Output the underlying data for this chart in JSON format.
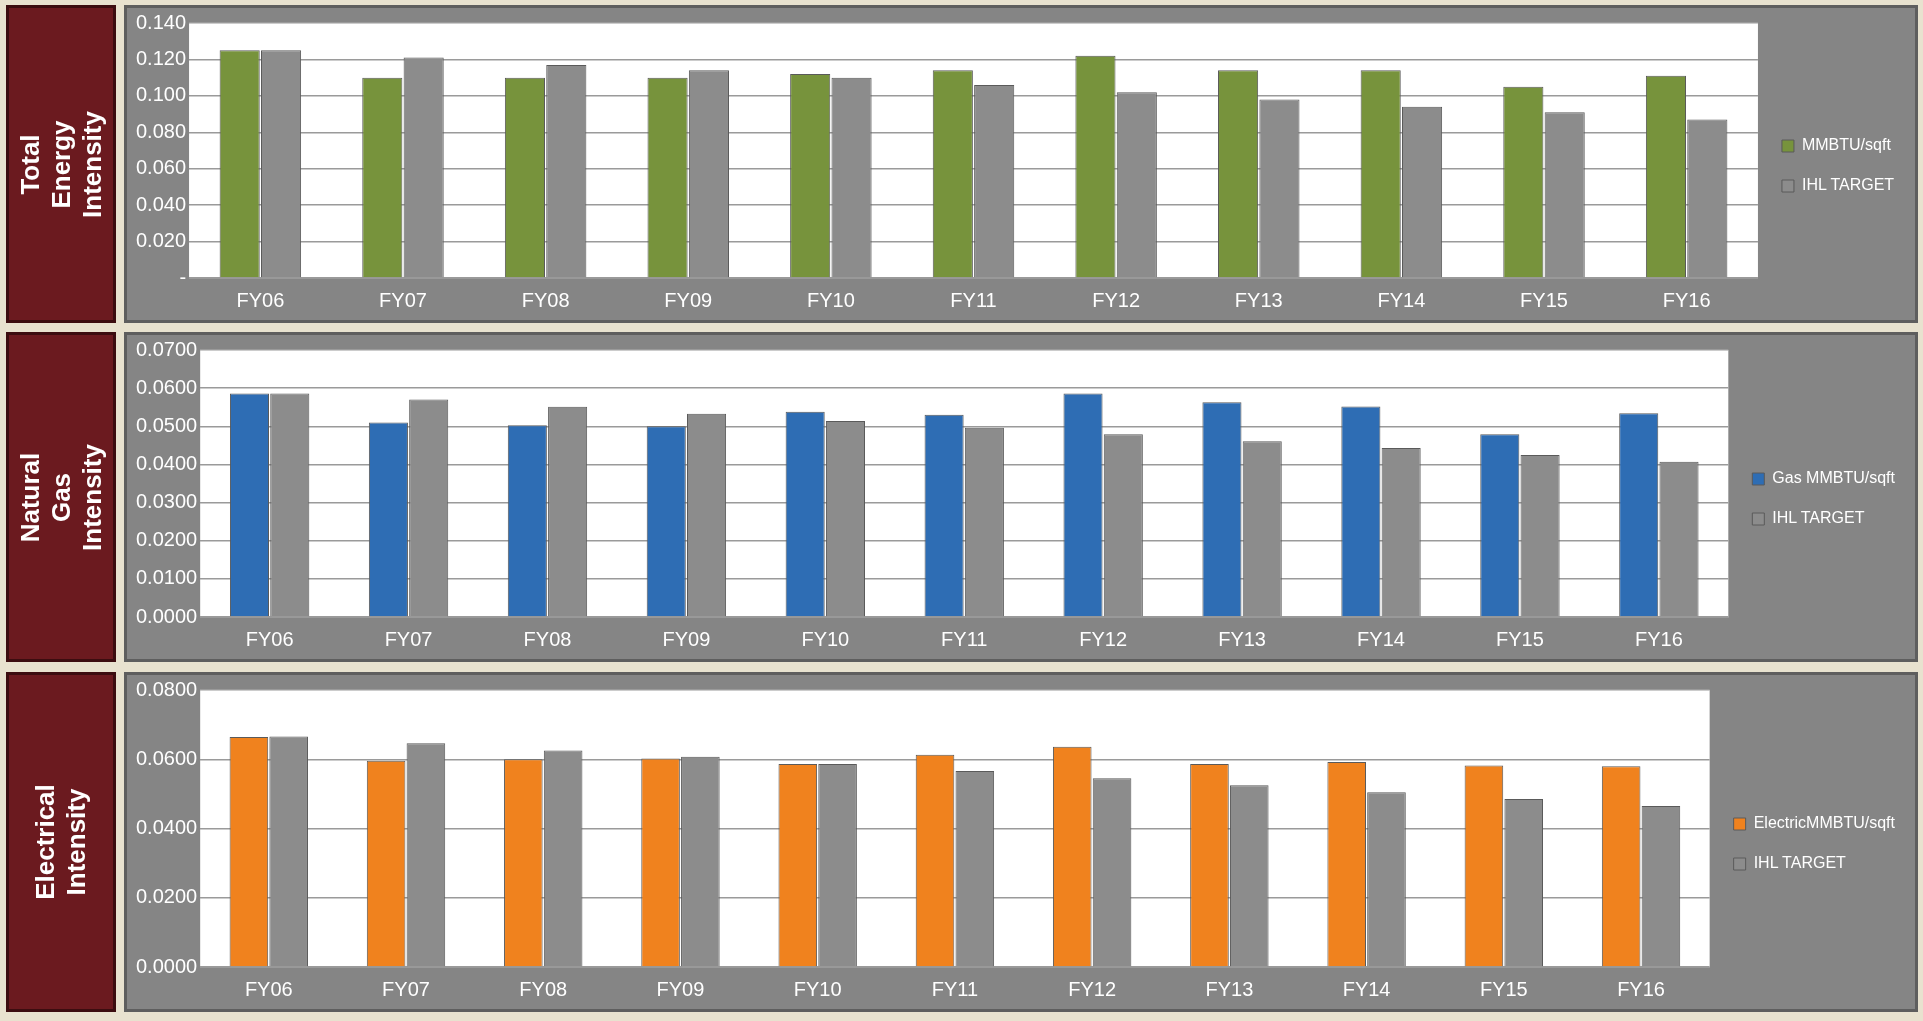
{
  "chart_data": [
    {
      "type": "bar",
      "title": "Total Energy Intensity",
      "categories": [
        "FY06",
        "FY07",
        "FY08",
        "FY09",
        "FY10",
        "FY11",
        "FY12",
        "FY13",
        "FY14",
        "FY15",
        "FY16"
      ],
      "series": [
        {
          "name": "MMBTU/sqft",
          "color": "#77933c",
          "values": [
            0.125,
            0.11,
            0.11,
            0.11,
            0.112,
            0.114,
            0.122,
            0.114,
            0.114,
            0.105,
            0.111
          ]
        },
        {
          "name": "IHL TARGET",
          "color": "#8c8c8c",
          "values": [
            0.125,
            0.121,
            0.117,
            0.114,
            0.11,
            0.106,
            0.102,
            0.098,
            0.094,
            0.091,
            0.087
          ]
        }
      ],
      "ylim": [
        0,
        0.14
      ],
      "yticks": [
        {
          "value": 0,
          "label": "-"
        },
        {
          "value": 0.02,
          "label": "0.020"
        },
        {
          "value": 0.04,
          "label": "0.040"
        },
        {
          "value": 0.06,
          "label": "0.060"
        },
        {
          "value": 0.08,
          "label": "0.080"
        },
        {
          "value": 0.1,
          "label": "0.100"
        },
        {
          "value": 0.12,
          "label": "0.120"
        },
        {
          "value": 0.14,
          "label": "0.140"
        }
      ],
      "grid": "y",
      "legend": "right"
    },
    {
      "type": "bar",
      "title": "Natural Gas Intensity",
      "categories": [
        "FY06",
        "FY07",
        "FY08",
        "FY09",
        "FY10",
        "FY11",
        "FY12",
        "FY13",
        "FY14",
        "FY15",
        "FY16"
      ],
      "series": [
        {
          "name": "Gas MMBTU/sqft",
          "color": "#2e6db4",
          "values": [
            0.0586,
            0.051,
            0.0503,
            0.05,
            0.0538,
            0.053,
            0.0586,
            0.0563,
            0.0552,
            0.0479,
            0.0534
          ]
        },
        {
          "name": "IHL TARGET",
          "color": "#8c8c8c",
          "values": [
            0.0586,
            0.057,
            0.0551,
            0.0533,
            0.0514,
            0.0496,
            0.0479,
            0.0461,
            0.0443,
            0.0425,
            0.0407
          ]
        }
      ],
      "ylim": [
        0,
        0.07
      ],
      "yticks": [
        {
          "value": 0,
          "label": "0.0000"
        },
        {
          "value": 0.01,
          "label": "0.0100"
        },
        {
          "value": 0.02,
          "label": "0.0200"
        },
        {
          "value": 0.03,
          "label": "0.0300"
        },
        {
          "value": 0.04,
          "label": "0.0400"
        },
        {
          "value": 0.05,
          "label": "0.0500"
        },
        {
          "value": 0.06,
          "label": "0.0600"
        },
        {
          "value": 0.07,
          "label": "0.0700"
        }
      ],
      "grid": "y",
      "legend": "right"
    },
    {
      "type": "bar",
      "title": "Electrical  Intensity",
      "categories": [
        "FY06",
        "FY07",
        "FY08",
        "FY09",
        "FY10",
        "FY11",
        "FY12",
        "FY13",
        "FY14",
        "FY15",
        "FY16"
      ],
      "series": [
        {
          "name": "ElectricMMBTU/sqft",
          "color": "#f0821e",
          "values": [
            0.0664,
            0.0596,
            0.06,
            0.0602,
            0.0586,
            0.0613,
            0.0636,
            0.0586,
            0.0592,
            0.0582,
            0.058
          ]
        },
        {
          "name": "IHL TARGET",
          "color": "#8c8c8c",
          "values": [
            0.0666,
            0.0646,
            0.0625,
            0.0607,
            0.0586,
            0.0566,
            0.0545,
            0.0525,
            0.0505,
            0.0485,
            0.0465
          ]
        }
      ],
      "ylim": [
        0,
        0.08
      ],
      "yticks": [
        {
          "value": 0,
          "label": "0.0000"
        },
        {
          "value": 0.02,
          "label": "0.0200"
        },
        {
          "value": 0.04,
          "label": "0.0400"
        },
        {
          "value": 0.06,
          "label": "0.0600"
        },
        {
          "value": 0.08,
          "label": "0.0800"
        }
      ],
      "grid": "y",
      "legend": "right"
    }
  ]
}
